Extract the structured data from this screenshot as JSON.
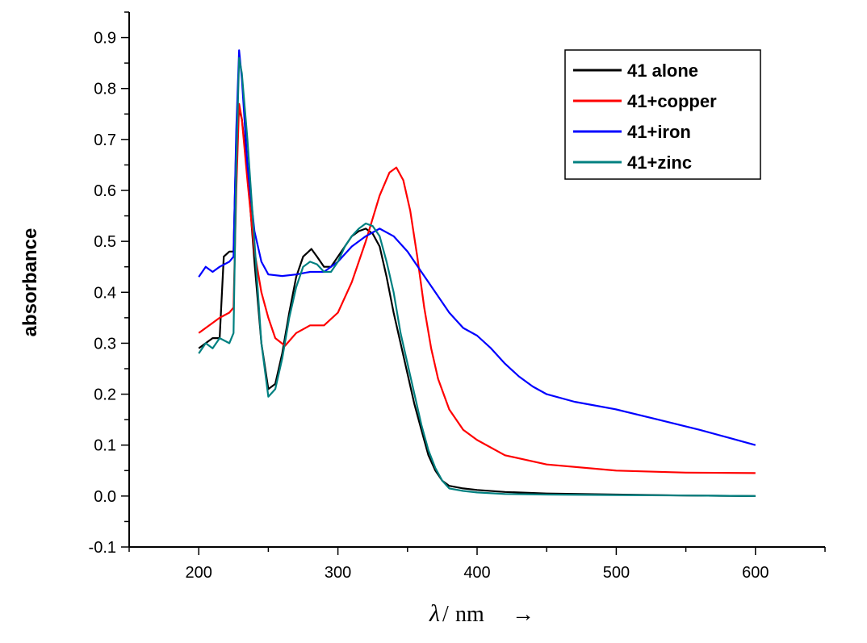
{
  "chart_data": {
    "type": "line",
    "title": "",
    "xlabel_symbol": "λ",
    "xlabel_unit": "nm",
    "xlabel_arrow": "→",
    "ylabel": "absorbance",
    "xlim": [
      150,
      650
    ],
    "ylim": [
      -0.1,
      0.95
    ],
    "xticks": [
      200,
      300,
      400,
      500,
      600
    ],
    "yticks": [
      -0.1,
      0.0,
      0.1,
      0.2,
      0.3,
      0.4,
      0.5,
      0.6,
      0.7,
      0.8,
      0.9
    ],
    "ytick_labels": [
      "-0.1",
      "0.0",
      "0.1",
      "0.2",
      "0.3",
      "0.4",
      "0.5",
      "0.6",
      "0.7",
      "0.8",
      "0.9"
    ],
    "grid": false,
    "legend_position": "top-right",
    "series": [
      {
        "name": "41 alone",
        "color": "#000000",
        "points": [
          [
            200,
            0.29
          ],
          [
            205,
            0.3
          ],
          [
            210,
            0.31
          ],
          [
            215,
            0.31
          ],
          [
            218,
            0.47
          ],
          [
            222,
            0.48
          ],
          [
            225,
            0.48
          ],
          [
            227,
            0.7
          ],
          [
            229,
            0.76
          ],
          [
            231,
            0.74
          ],
          [
            235,
            0.64
          ],
          [
            240,
            0.46
          ],
          [
            245,
            0.3
          ],
          [
            250,
            0.21
          ],
          [
            255,
            0.22
          ],
          [
            260,
            0.28
          ],
          [
            265,
            0.36
          ],
          [
            270,
            0.43
          ],
          [
            275,
            0.47
          ],
          [
            281,
            0.485
          ],
          [
            285,
            0.47
          ],
          [
            290,
            0.45
          ],
          [
            295,
            0.45
          ],
          [
            300,
            0.47
          ],
          [
            305,
            0.49
          ],
          [
            310,
            0.51
          ],
          [
            315,
            0.52
          ],
          [
            320,
            0.525
          ],
          [
            325,
            0.515
          ],
          [
            330,
            0.49
          ],
          [
            335,
            0.43
          ],
          [
            340,
            0.36
          ],
          [
            345,
            0.3
          ],
          [
            350,
            0.24
          ],
          [
            355,
            0.18
          ],
          [
            360,
            0.13
          ],
          [
            365,
            0.08
          ],
          [
            370,
            0.05
          ],
          [
            375,
            0.03
          ],
          [
            380,
            0.02
          ],
          [
            390,
            0.015
          ],
          [
            400,
            0.012
          ],
          [
            420,
            0.008
          ],
          [
            450,
            0.005
          ],
          [
            500,
            0.003
          ],
          [
            550,
            0.001
          ],
          [
            600,
            0.0
          ]
        ]
      },
      {
        "name": "41+copper",
        "color": "#ff0000",
        "points": [
          [
            200,
            0.32
          ],
          [
            205,
            0.33
          ],
          [
            210,
            0.34
          ],
          [
            215,
            0.35
          ],
          [
            222,
            0.36
          ],
          [
            225,
            0.37
          ],
          [
            227,
            0.6
          ],
          [
            229,
            0.77
          ],
          [
            231,
            0.74
          ],
          [
            235,
            0.62
          ],
          [
            240,
            0.48
          ],
          [
            245,
            0.4
          ],
          [
            250,
            0.35
          ],
          [
            255,
            0.31
          ],
          [
            262,
            0.295
          ],
          [
            270,
            0.32
          ],
          [
            280,
            0.335
          ],
          [
            290,
            0.335
          ],
          [
            300,
            0.36
          ],
          [
            310,
            0.42
          ],
          [
            320,
            0.5
          ],
          [
            330,
            0.59
          ],
          [
            337,
            0.635
          ],
          [
            342,
            0.645
          ],
          [
            347,
            0.62
          ],
          [
            352,
            0.56
          ],
          [
            357,
            0.47
          ],
          [
            362,
            0.37
          ],
          [
            367,
            0.29
          ],
          [
            372,
            0.23
          ],
          [
            380,
            0.17
          ],
          [
            390,
            0.13
          ],
          [
            400,
            0.11
          ],
          [
            420,
            0.08
          ],
          [
            450,
            0.062
          ],
          [
            500,
            0.05
          ],
          [
            550,
            0.046
          ],
          [
            600,
            0.045
          ]
        ]
      },
      {
        "name": "41+iron",
        "color": "#0000ff",
        "points": [
          [
            200,
            0.43
          ],
          [
            205,
            0.45
          ],
          [
            210,
            0.44
          ],
          [
            215,
            0.45
          ],
          [
            222,
            0.46
          ],
          [
            225,
            0.47
          ],
          [
            227,
            0.72
          ],
          [
            229,
            0.875
          ],
          [
            231,
            0.82
          ],
          [
            235,
            0.65
          ],
          [
            240,
            0.52
          ],
          [
            245,
            0.46
          ],
          [
            250,
            0.435
          ],
          [
            260,
            0.432
          ],
          [
            270,
            0.435
          ],
          [
            280,
            0.44
          ],
          [
            290,
            0.44
          ],
          [
            300,
            0.46
          ],
          [
            310,
            0.49
          ],
          [
            320,
            0.51
          ],
          [
            330,
            0.525
          ],
          [
            340,
            0.51
          ],
          [
            350,
            0.48
          ],
          [
            360,
            0.44
          ],
          [
            370,
            0.4
          ],
          [
            380,
            0.36
          ],
          [
            390,
            0.33
          ],
          [
            400,
            0.315
          ],
          [
            410,
            0.29
          ],
          [
            420,
            0.26
          ],
          [
            430,
            0.235
          ],
          [
            440,
            0.215
          ],
          [
            450,
            0.2
          ],
          [
            470,
            0.185
          ],
          [
            500,
            0.17
          ],
          [
            530,
            0.15
          ],
          [
            560,
            0.13
          ],
          [
            580,
            0.115
          ],
          [
            600,
            0.1
          ]
        ]
      },
      {
        "name": "41+zinc",
        "color": "#008080",
        "points": [
          [
            200,
            0.28
          ],
          [
            205,
            0.3
          ],
          [
            210,
            0.29
          ],
          [
            215,
            0.31
          ],
          [
            222,
            0.3
          ],
          [
            225,
            0.32
          ],
          [
            227,
            0.65
          ],
          [
            229,
            0.86
          ],
          [
            231,
            0.83
          ],
          [
            235,
            0.7
          ],
          [
            240,
            0.5
          ],
          [
            245,
            0.3
          ],
          [
            250,
            0.195
          ],
          [
            255,
            0.21
          ],
          [
            260,
            0.27
          ],
          [
            265,
            0.35
          ],
          [
            270,
            0.41
          ],
          [
            275,
            0.45
          ],
          [
            280,
            0.46
          ],
          [
            285,
            0.455
          ],
          [
            290,
            0.44
          ],
          [
            295,
            0.44
          ],
          [
            300,
            0.46
          ],
          [
            305,
            0.49
          ],
          [
            310,
            0.51
          ],
          [
            315,
            0.525
          ],
          [
            320,
            0.535
          ],
          [
            325,
            0.53
          ],
          [
            330,
            0.51
          ],
          [
            335,
            0.46
          ],
          [
            340,
            0.4
          ],
          [
            345,
            0.32
          ],
          [
            350,
            0.26
          ],
          [
            355,
            0.2
          ],
          [
            360,
            0.14
          ],
          [
            365,
            0.09
          ],
          [
            370,
            0.055
          ],
          [
            375,
            0.03
          ],
          [
            380,
            0.015
          ],
          [
            390,
            0.01
          ],
          [
            400,
            0.007
          ],
          [
            420,
            0.004
          ],
          [
            450,
            0.003
          ],
          [
            500,
            0.002
          ],
          [
            550,
            0.001
          ],
          [
            600,
            0.0
          ]
        ]
      }
    ]
  }
}
